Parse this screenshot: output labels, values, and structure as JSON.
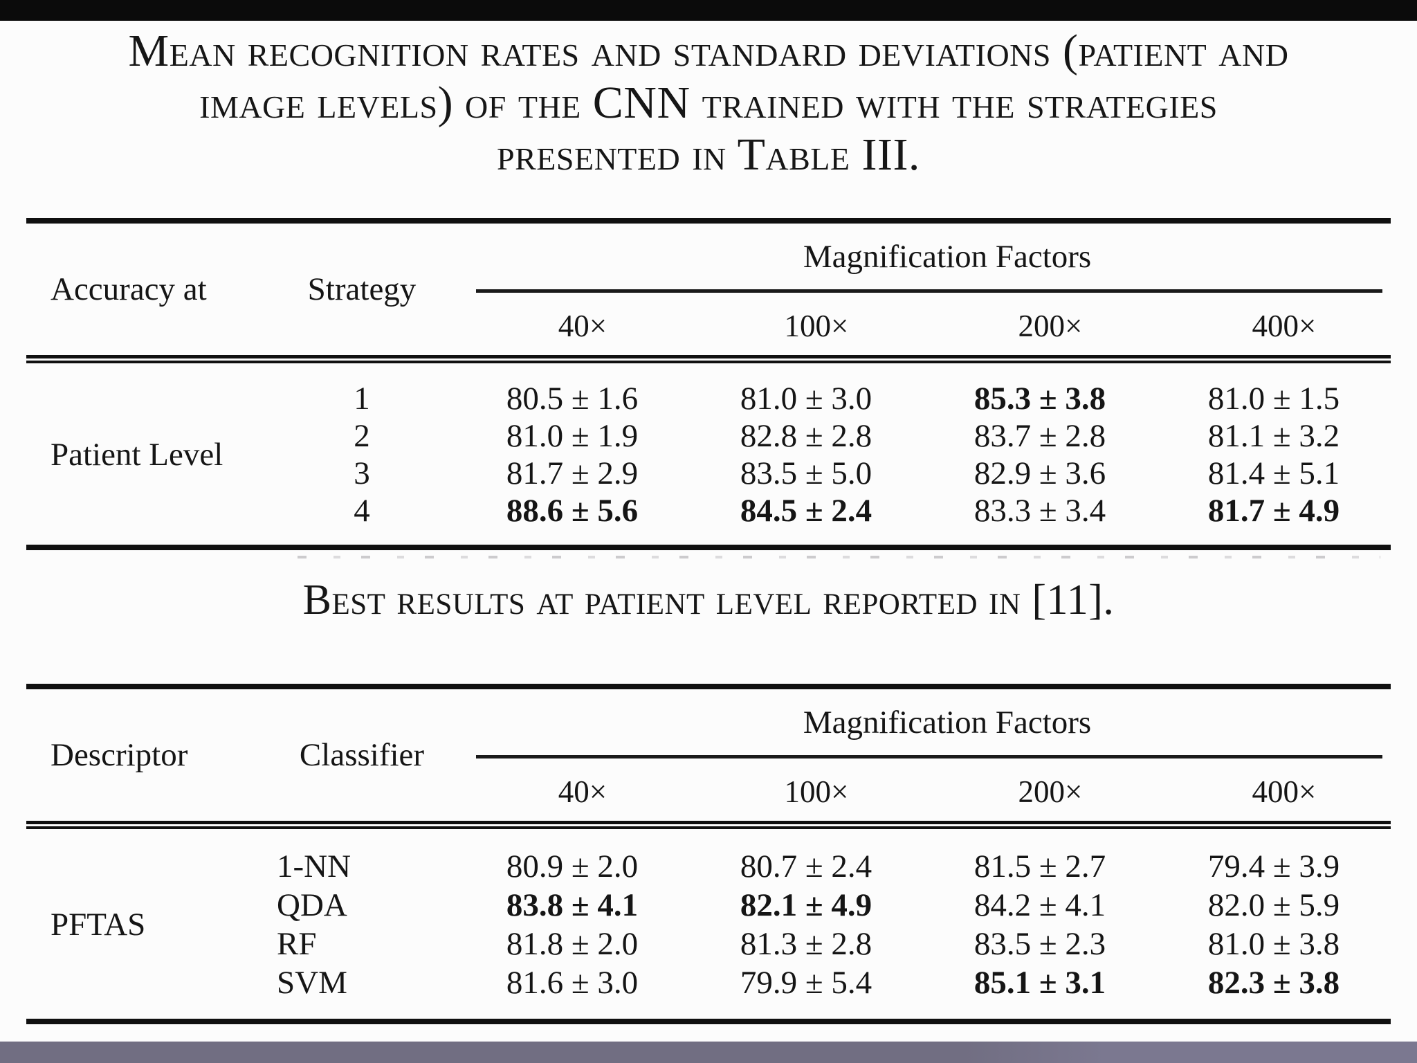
{
  "colors": {
    "top_bar": "#0b0b0b",
    "page_background": "#fcfcfc",
    "text": "#151515",
    "bottom_bar": "#716e82"
  },
  "captions": {
    "title_lines": [
      "Mean recognition rates and standard deviations (patient and",
      "image levels) of the CNN trained with the strategies",
      "presented in Table III."
    ],
    "mid": "Best results at patient level reported in [11]."
  },
  "table1": {
    "header": {
      "col1": "Accuracy at",
      "col2": "Strategy",
      "group": "Magnification Factors",
      "mags": [
        "40×",
        "100×",
        "200×",
        "400×"
      ]
    },
    "group_label": "Patient Level",
    "rows": [
      {
        "label": "1",
        "cells": [
          {
            "text": "80.5 ± 1.6",
            "bold": false
          },
          {
            "text": "81.0 ± 3.0",
            "bold": false
          },
          {
            "text": "85.3 ± 3.8",
            "bold": true
          },
          {
            "text": "81.0 ± 1.5",
            "bold": false
          }
        ]
      },
      {
        "label": "2",
        "cells": [
          {
            "text": "81.0 ± 1.9",
            "bold": false
          },
          {
            "text": "82.8 ± 2.8",
            "bold": false
          },
          {
            "text": "83.7 ± 2.8",
            "bold": false
          },
          {
            "text": "81.1 ± 3.2",
            "bold": false
          }
        ]
      },
      {
        "label": "3",
        "cells": [
          {
            "text": "81.7 ± 2.9",
            "bold": false
          },
          {
            "text": "83.5 ± 5.0",
            "bold": false
          },
          {
            "text": "82.9 ± 3.6",
            "bold": false
          },
          {
            "text": "81.4 ± 5.1",
            "bold": false
          }
        ]
      },
      {
        "label": "4",
        "cells": [
          {
            "text": "88.6 ± 5.6",
            "bold": true
          },
          {
            "text": "84.5 ± 2.4",
            "bold": true
          },
          {
            "text": "83.3 ± 3.4",
            "bold": false
          },
          {
            "text": "81.7 ± 4.9",
            "bold": true
          }
        ]
      }
    ]
  },
  "table2": {
    "header": {
      "col1": "Descriptor",
      "col2": "Classifier",
      "group": "Magnification Factors",
      "mags": [
        "40×",
        "100×",
        "200×",
        "400×"
      ]
    },
    "group_label": "PFTAS",
    "rows": [
      {
        "label": "1-NN",
        "cells": [
          {
            "text": "80.9 ± 2.0",
            "bold": false
          },
          {
            "text": "80.7 ± 2.4",
            "bold": false
          },
          {
            "text": "81.5 ± 2.7",
            "bold": false
          },
          {
            "text": "79.4 ± 3.9",
            "bold": false
          }
        ]
      },
      {
        "label": "QDA",
        "cells": [
          {
            "text": "83.8 ± 4.1",
            "bold": true
          },
          {
            "text": "82.1 ± 4.9",
            "bold": true
          },
          {
            "text": "84.2 ± 4.1",
            "bold": false
          },
          {
            "text": "82.0 ± 5.9",
            "bold": false
          }
        ]
      },
      {
        "label": "RF",
        "cells": [
          {
            "text": "81.8 ± 2.0",
            "bold": false
          },
          {
            "text": "81.3 ± 2.8",
            "bold": false
          },
          {
            "text": "83.5 ± 2.3",
            "bold": false
          },
          {
            "text": "81.0 ± 3.8",
            "bold": false
          }
        ]
      },
      {
        "label": "SVM",
        "cells": [
          {
            "text": "81.6 ± 3.0",
            "bold": false
          },
          {
            "text": "79.9 ± 5.4",
            "bold": false
          },
          {
            "text": "85.1 ± 3.1",
            "bold": true
          },
          {
            "text": "82.3 ± 3.8",
            "bold": true
          }
        ]
      }
    ]
  }
}
